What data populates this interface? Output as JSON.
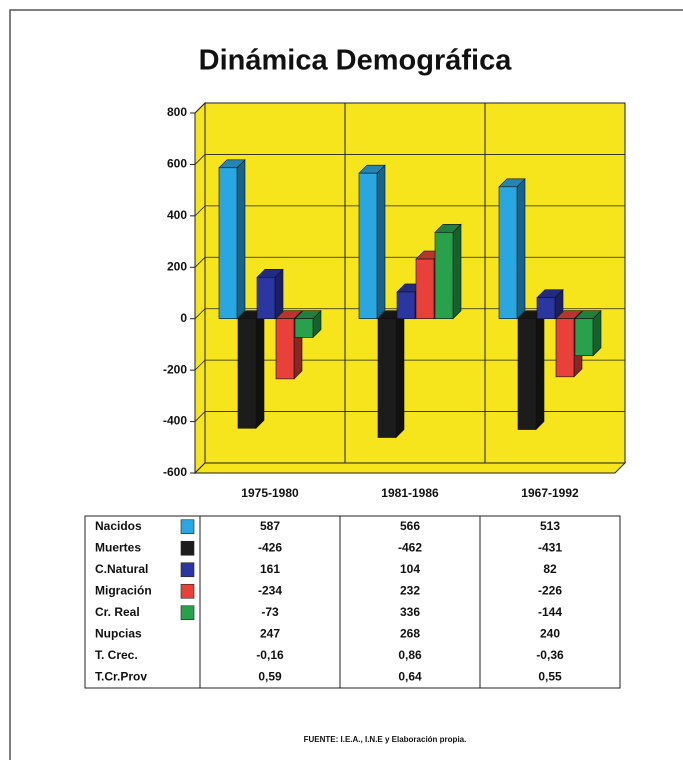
{
  "chart_data": {
    "type": "bar3d",
    "title": "Dinámica Demográfica",
    "categories": [
      "1975-1980",
      "1981-1986",
      "1967-1992"
    ],
    "series": [
      {
        "name": "Nacidos",
        "color": "#2aa6e0",
        "values": [
          587,
          566,
          513
        ]
      },
      {
        "name": "Muertes",
        "color": "#1c1c1c",
        "values": [
          -426,
          -462,
          -431
        ]
      },
      {
        "name": "C.Natural",
        "color": "#2b36a0",
        "values": [
          161,
          104,
          82
        ]
      },
      {
        "name": "Migración",
        "color": "#e8413a",
        "values": [
          -234,
          232,
          -226
        ]
      },
      {
        "name": "Cr. Real",
        "color": "#28a04c",
        "values": [
          -73,
          336,
          -144
        ]
      }
    ],
    "table_rows": [
      {
        "name": "Nupcias",
        "values": [
          247,
          268,
          240
        ]
      },
      {
        "name": "T. Crec.",
        "values": [
          -0.16,
          0.86,
          -0.36
        ],
        "value_labels": [
          "-0,16",
          "0,86",
          "-0,36"
        ]
      },
      {
        "name": "T.Cr.Prov",
        "values": [
          0.59,
          0.64,
          0.55
        ],
        "value_labels": [
          "0,59",
          "0,64",
          "0,55"
        ]
      }
    ],
    "ylim": [
      -600,
      800
    ],
    "yticks": [
      -600,
      -400,
      -200,
      0,
      200,
      400,
      600,
      800
    ],
    "grid": true,
    "wall_color": "#f6e41c",
    "source": "FUENTE: I.E.A., I.N.E y Elaboración propia."
  }
}
